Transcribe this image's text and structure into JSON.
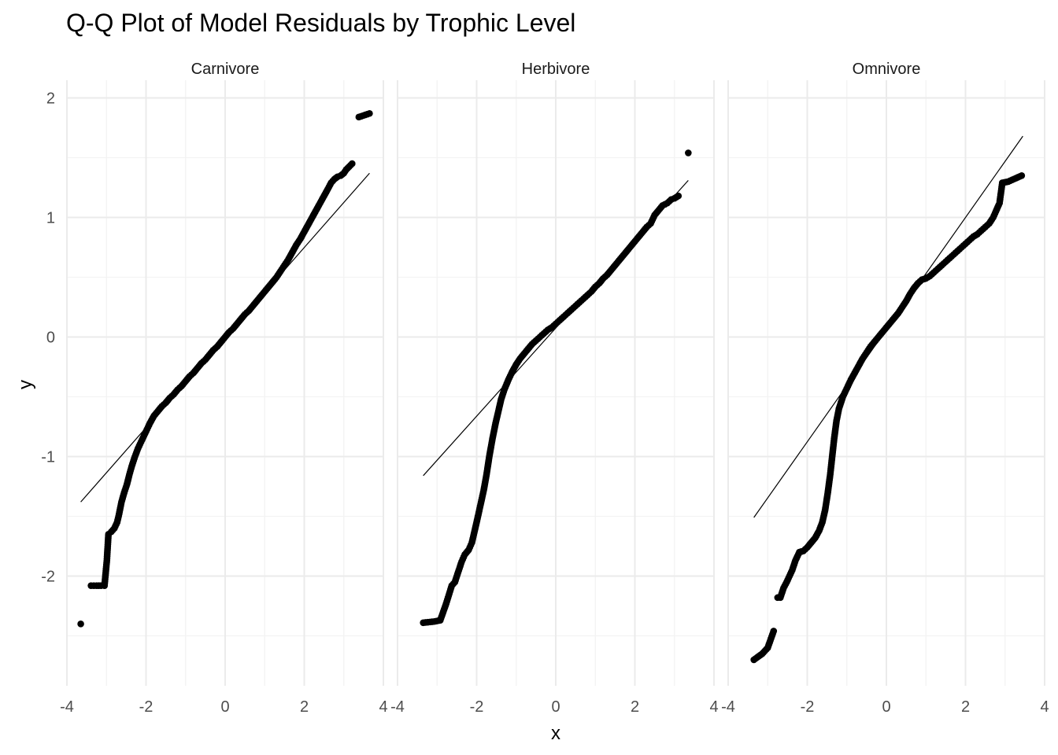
{
  "chart_data": {
    "type": "scatter",
    "title": "Q-Q Plot of Model Residuals by Trophic Level",
    "xlabel": "x",
    "ylabel": "y",
    "xlim": [
      -4,
      4
    ],
    "ylim": [
      -2.8,
      2.1
    ],
    "x_ticks": [
      -4,
      -2,
      0,
      2,
      4
    ],
    "x_tick_labels": [
      "-4",
      "-2",
      "0",
      "2",
      "4"
    ],
    "y_ticks": [
      -2,
      -1,
      0,
      1,
      2
    ],
    "y_tick_labels": [
      "-2",
      "-1",
      "0",
      "1",
      "2"
    ],
    "grid": true,
    "legend": "none",
    "point_color": "#000000",
    "panels": [
      {
        "name": "Carnivore",
        "line": [
          [
            -3.65,
            -1.38
          ],
          [
            3.65,
            1.37
          ]
        ],
        "points": [
          [
            -3.65,
            -2.4
          ],
          [
            -3.39,
            -2.08
          ],
          [
            -3.25,
            -2.08
          ],
          [
            -3.14,
            -2.08
          ],
          [
            -3.05,
            -2.08
          ],
          [
            -2.99,
            -1.87
          ],
          [
            -2.95,
            -1.65
          ],
          [
            -2.88,
            -1.63
          ],
          [
            -2.8,
            -1.6
          ],
          [
            -2.73,
            -1.55
          ],
          [
            -2.68,
            -1.48
          ],
          [
            -2.62,
            -1.38
          ],
          [
            -2.55,
            -1.3
          ],
          [
            -2.48,
            -1.23
          ],
          [
            -2.42,
            -1.15
          ],
          [
            -2.36,
            -1.08
          ],
          [
            -2.28,
            -1.0
          ],
          [
            -2.2,
            -0.93
          ],
          [
            -2.1,
            -0.86
          ],
          [
            -2.0,
            -0.79
          ],
          [
            -1.9,
            -0.72
          ],
          [
            -1.8,
            -0.66
          ],
          [
            -1.7,
            -0.62
          ],
          [
            -1.6,
            -0.58
          ],
          [
            -1.5,
            -0.55
          ],
          [
            -1.4,
            -0.51
          ],
          [
            -1.3,
            -0.48
          ],
          [
            -1.2,
            -0.44
          ],
          [
            -1.1,
            -0.41
          ],
          [
            -1.0,
            -0.37
          ],
          [
            -0.9,
            -0.33
          ],
          [
            -0.8,
            -0.3
          ],
          [
            -0.7,
            -0.26
          ],
          [
            -0.6,
            -0.22
          ],
          [
            -0.5,
            -0.19
          ],
          [
            -0.4,
            -0.15
          ],
          [
            -0.3,
            -0.11
          ],
          [
            -0.2,
            -0.08
          ],
          [
            -0.1,
            -0.04
          ],
          [
            0.0,
            0.0
          ],
          [
            0.1,
            0.04
          ],
          [
            0.2,
            0.07
          ],
          [
            0.3,
            0.11
          ],
          [
            0.4,
            0.15
          ],
          [
            0.5,
            0.19
          ],
          [
            0.6,
            0.22
          ],
          [
            0.7,
            0.26
          ],
          [
            0.8,
            0.3
          ],
          [
            0.9,
            0.34
          ],
          [
            1.0,
            0.38
          ],
          [
            1.1,
            0.42
          ],
          [
            1.2,
            0.46
          ],
          [
            1.3,
            0.5
          ],
          [
            1.4,
            0.55
          ],
          [
            1.5,
            0.6
          ],
          [
            1.6,
            0.65
          ],
          [
            1.7,
            0.71
          ],
          [
            1.8,
            0.77
          ],
          [
            1.9,
            0.82
          ],
          [
            2.0,
            0.88
          ],
          [
            2.1,
            0.94
          ],
          [
            2.2,
            1.0
          ],
          [
            2.3,
            1.06
          ],
          [
            2.4,
            1.12
          ],
          [
            2.5,
            1.18
          ],
          [
            2.6,
            1.24
          ],
          [
            2.68,
            1.29
          ],
          [
            2.76,
            1.32
          ],
          [
            2.84,
            1.34
          ],
          [
            2.92,
            1.35
          ],
          [
            3.0,
            1.37
          ],
          [
            3.06,
            1.4
          ],
          [
            3.21,
            1.45
          ],
          [
            3.38,
            1.84
          ],
          [
            3.65,
            1.87
          ]
        ]
      },
      {
        "name": "Herbivore",
        "line": [
          [
            -3.35,
            -1.16
          ],
          [
            3.35,
            1.31
          ]
        ],
        "points": [
          [
            -3.35,
            -2.39
          ],
          [
            -3.07,
            -2.38
          ],
          [
            -2.92,
            -2.37
          ],
          [
            -2.77,
            -2.23
          ],
          [
            -2.63,
            -2.08
          ],
          [
            -2.55,
            -2.05
          ],
          [
            -2.45,
            -1.95
          ],
          [
            -2.38,
            -1.88
          ],
          [
            -2.3,
            -1.82
          ],
          [
            -2.2,
            -1.78
          ],
          [
            -2.12,
            -1.72
          ],
          [
            -2.05,
            -1.62
          ],
          [
            -1.98,
            -1.52
          ],
          [
            -1.9,
            -1.4
          ],
          [
            -1.82,
            -1.28
          ],
          [
            -1.75,
            -1.15
          ],
          [
            -1.68,
            -1.0
          ],
          [
            -1.6,
            -0.85
          ],
          [
            -1.52,
            -0.72
          ],
          [
            -1.45,
            -0.62
          ],
          [
            -1.38,
            -0.52
          ],
          [
            -1.3,
            -0.44
          ],
          [
            -1.2,
            -0.36
          ],
          [
            -1.1,
            -0.29
          ],
          [
            -1.0,
            -0.23
          ],
          [
            -0.9,
            -0.18
          ],
          [
            -0.8,
            -0.14
          ],
          [
            -0.7,
            -0.1
          ],
          [
            -0.6,
            -0.06
          ],
          [
            -0.5,
            -0.03
          ],
          [
            -0.4,
            0.0
          ],
          [
            -0.3,
            0.03
          ],
          [
            -0.2,
            0.06
          ],
          [
            -0.1,
            0.08
          ],
          [
            0.0,
            0.11
          ],
          [
            0.1,
            0.14
          ],
          [
            0.2,
            0.17
          ],
          [
            0.3,
            0.2
          ],
          [
            0.4,
            0.23
          ],
          [
            0.5,
            0.26
          ],
          [
            0.6,
            0.29
          ],
          [
            0.7,
            0.32
          ],
          [
            0.8,
            0.35
          ],
          [
            0.9,
            0.38
          ],
          [
            1.0,
            0.42
          ],
          [
            1.1,
            0.45
          ],
          [
            1.2,
            0.49
          ],
          [
            1.3,
            0.52
          ],
          [
            1.4,
            0.56
          ],
          [
            1.5,
            0.6
          ],
          [
            1.6,
            0.64
          ],
          [
            1.7,
            0.68
          ],
          [
            1.8,
            0.72
          ],
          [
            1.9,
            0.76
          ],
          [
            2.0,
            0.8
          ],
          [
            2.1,
            0.84
          ],
          [
            2.2,
            0.88
          ],
          [
            2.3,
            0.92
          ],
          [
            2.4,
            0.95
          ],
          [
            2.5,
            1.02
          ],
          [
            2.6,
            1.06
          ],
          [
            2.7,
            1.1
          ],
          [
            2.82,
            1.12
          ],
          [
            2.92,
            1.15
          ],
          [
            3.0,
            1.16
          ],
          [
            3.1,
            1.18
          ],
          [
            3.35,
            1.54
          ]
        ]
      },
      {
        "name": "Omnivore",
        "line": [
          [
            -3.35,
            -1.51
          ],
          [
            3.45,
            1.68
          ]
        ],
        "points": [
          [
            -3.35,
            -2.7
          ],
          [
            -3.14,
            -2.65
          ],
          [
            -3.0,
            -2.6
          ],
          [
            -2.85,
            -2.46
          ],
          [
            -2.75,
            -2.18
          ],
          [
            -2.68,
            -2.18
          ],
          [
            -2.6,
            -2.1
          ],
          [
            -2.52,
            -2.05
          ],
          [
            -2.45,
            -2.0
          ],
          [
            -2.38,
            -1.95
          ],
          [
            -2.3,
            -1.87
          ],
          [
            -2.2,
            -1.8
          ],
          [
            -2.1,
            -1.79
          ],
          [
            -2.0,
            -1.76
          ],
          [
            -1.9,
            -1.72
          ],
          [
            -1.8,
            -1.68
          ],
          [
            -1.7,
            -1.62
          ],
          [
            -1.62,
            -1.55
          ],
          [
            -1.55,
            -1.45
          ],
          [
            -1.48,
            -1.3
          ],
          [
            -1.42,
            -1.15
          ],
          [
            -1.37,
            -1.0
          ],
          [
            -1.32,
            -0.85
          ],
          [
            -1.26,
            -0.7
          ],
          [
            -1.2,
            -0.6
          ],
          [
            -1.1,
            -0.5
          ],
          [
            -1.0,
            -0.43
          ],
          [
            -0.9,
            -0.36
          ],
          [
            -0.8,
            -0.3
          ],
          [
            -0.7,
            -0.24
          ],
          [
            -0.6,
            -0.18
          ],
          [
            -0.5,
            -0.13
          ],
          [
            -0.4,
            -0.08
          ],
          [
            -0.3,
            -0.04
          ],
          [
            -0.2,
            0.0
          ],
          [
            -0.1,
            0.04
          ],
          [
            0.0,
            0.08
          ],
          [
            0.1,
            0.12
          ],
          [
            0.2,
            0.16
          ],
          [
            0.3,
            0.2
          ],
          [
            0.4,
            0.25
          ],
          [
            0.5,
            0.3
          ],
          [
            0.6,
            0.36
          ],
          [
            0.7,
            0.41
          ],
          [
            0.8,
            0.45
          ],
          [
            0.9,
            0.48
          ],
          [
            1.0,
            0.49
          ],
          [
            1.1,
            0.51
          ],
          [
            1.2,
            0.54
          ],
          [
            1.3,
            0.57
          ],
          [
            1.4,
            0.6
          ],
          [
            1.5,
            0.63
          ],
          [
            1.6,
            0.66
          ],
          [
            1.7,
            0.69
          ],
          [
            1.8,
            0.72
          ],
          [
            1.9,
            0.75
          ],
          [
            2.0,
            0.78
          ],
          [
            2.1,
            0.81
          ],
          [
            2.2,
            0.84
          ],
          [
            2.3,
            0.86
          ],
          [
            2.4,
            0.89
          ],
          [
            2.5,
            0.92
          ],
          [
            2.6,
            0.95
          ],
          [
            2.7,
            1.0
          ],
          [
            2.86,
            1.12
          ],
          [
            2.93,
            1.29
          ],
          [
            3.08,
            1.3
          ],
          [
            3.42,
            1.35
          ]
        ]
      }
    ]
  }
}
